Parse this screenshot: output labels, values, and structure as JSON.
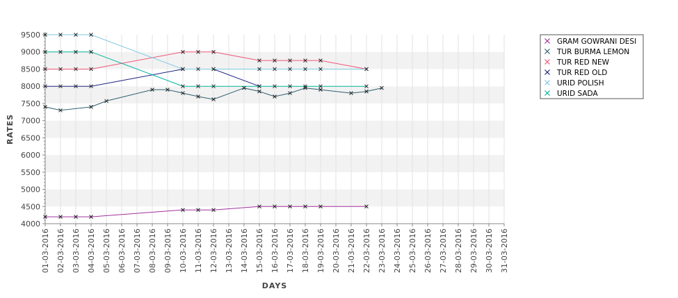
{
  "chart_data": {
    "type": "line",
    "title": "",
    "xlabel": "DAYS",
    "ylabel": "RATES",
    "ylim": [
      4000,
      9500
    ],
    "yticks": [
      4000,
      4500,
      5000,
      5500,
      6000,
      6500,
      7000,
      7500,
      8000,
      8500,
      9000,
      9500
    ],
    "grid": true,
    "legend_position": "top-right",
    "categories": [
      "01-03-2016",
      "02-03-2016",
      "03-03-2016",
      "04-03-2016",
      "05-03-2016",
      "06-03-2016",
      "07-03-2016",
      "08-03-2016",
      "09-03-2016",
      "10-03-2016",
      "11-03-2016",
      "12-03-2016",
      "13-03-2016",
      "14-03-2016",
      "15-03-2016",
      "16-03-2016",
      "17-03-2016",
      "18-03-2016",
      "19-03-2016",
      "20-03-2016",
      "21-03-2016",
      "22-03-2016",
      "23-03-2016",
      "24-03-2016",
      "25-03-2016",
      "26-03-2016",
      "27-03-2016",
      "28-03-2016",
      "29-03-2016",
      "30-03-2016",
      "31-03-2016"
    ],
    "series": [
      {
        "name": "GRAM GOWRANI DESI",
        "color": "#a0309c",
        "values": [
          4200,
          4200,
          4200,
          4200,
          null,
          null,
          null,
          null,
          null,
          4400,
          4400,
          4400,
          null,
          null,
          4500,
          4500,
          4500,
          4500,
          4500,
          null,
          null,
          4500,
          null,
          null,
          null,
          null,
          null,
          null,
          null,
          null,
          null
        ]
      },
      {
        "name": "TUR BURMA LEMON",
        "color": "#2f5f6f",
        "values": [
          7400,
          7300,
          null,
          7400,
          7570,
          null,
          null,
          7900,
          7900,
          7800,
          7700,
          7620,
          null,
          7950,
          7850,
          7700,
          7800,
          7950,
          7900,
          null,
          7800,
          7850,
          7950,
          null,
          null,
          null,
          null,
          null,
          null,
          null,
          null
        ]
      },
      {
        "name": "TUR RED NEW",
        "color": "#ee5577",
        "values": [
          8500,
          8500,
          8500,
          8500,
          null,
          null,
          null,
          null,
          null,
          9000,
          9000,
          9000,
          null,
          null,
          8750,
          8750,
          8750,
          8750,
          8750,
          null,
          null,
          8500,
          null,
          null,
          null,
          null,
          null,
          null,
          null,
          null,
          null
        ]
      },
      {
        "name": "TUR RED OLD",
        "color": "#1a237e",
        "values": [
          8000,
          8000,
          8000,
          8000,
          null,
          null,
          null,
          null,
          null,
          8500,
          null,
          8500,
          null,
          null,
          8000,
          null,
          null,
          null,
          null,
          null,
          null,
          null,
          null,
          null,
          null,
          null,
          null,
          null,
          null,
          null,
          null
        ]
      },
      {
        "name": "URID POLISH",
        "color": "#7ec8e3",
        "values": [
          9500,
          9500,
          9500,
          9500,
          null,
          null,
          null,
          null,
          null,
          8500,
          8500,
          8500,
          null,
          null,
          8500,
          8500,
          8500,
          8500,
          8500,
          null,
          null,
          8500,
          null,
          null,
          null,
          null,
          null,
          null,
          null,
          null,
          null
        ]
      },
      {
        "name": "URID SADA",
        "color": "#00b39f",
        "values": [
          9000,
          9000,
          9000,
          9000,
          null,
          null,
          null,
          null,
          null,
          8000,
          8000,
          8000,
          null,
          null,
          8000,
          8000,
          8000,
          8000,
          8000,
          null,
          null,
          8000,
          null,
          null,
          null,
          null,
          null,
          null,
          null,
          null,
          null
        ]
      }
    ]
  }
}
